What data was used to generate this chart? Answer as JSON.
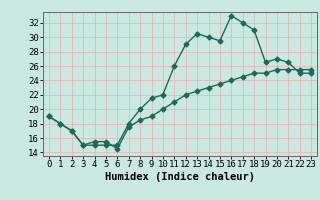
{
  "title": "",
  "xlabel": "Humidex (Indice chaleur)",
  "bg_color": "#c8e8e0",
  "grid_color": "#e8b8b8",
  "line_color": "#1a6b5a",
  "xlim": [
    -0.5,
    23.5
  ],
  "ylim": [
    13.5,
    33.5
  ],
  "yticks": [
    14,
    16,
    18,
    20,
    22,
    24,
    26,
    28,
    30,
    32
  ],
  "xticks": [
    0,
    1,
    2,
    3,
    4,
    5,
    6,
    7,
    8,
    9,
    10,
    11,
    12,
    13,
    14,
    15,
    16,
    17,
    18,
    19,
    20,
    21,
    22,
    23
  ],
  "line1_x": [
    0,
    1,
    2,
    3,
    4,
    5,
    6,
    7,
    8,
    9,
    10,
    11,
    12,
    13,
    14,
    15,
    16,
    17,
    18,
    19,
    20,
    21,
    22,
    23
  ],
  "line1_y": [
    19,
    18,
    17,
    15,
    15,
    15,
    15,
    18,
    20,
    21.5,
    22,
    26,
    29,
    30.5,
    30,
    29.5,
    33,
    32,
    31,
    26.5,
    27,
    26.5,
    25,
    25
  ],
  "line2_x": [
    0,
    1,
    2,
    3,
    4,
    5,
    6,
    7,
    8,
    9,
    10,
    11,
    12,
    13,
    14,
    15,
    16,
    17,
    18,
    19,
    20,
    21,
    22,
    23
  ],
  "line2_y": [
    19,
    18,
    17,
    15,
    15.5,
    15.5,
    14.5,
    17.5,
    18.5,
    19,
    20,
    21,
    22,
    22.5,
    23,
    23.5,
    24,
    24.5,
    25,
    25,
    25.5,
    25.5,
    25.5,
    25.5
  ],
  "marker_size": 2.5,
  "line_width": 1.0,
  "tick_fontsize": 6.5,
  "xlabel_fontsize": 7.5
}
